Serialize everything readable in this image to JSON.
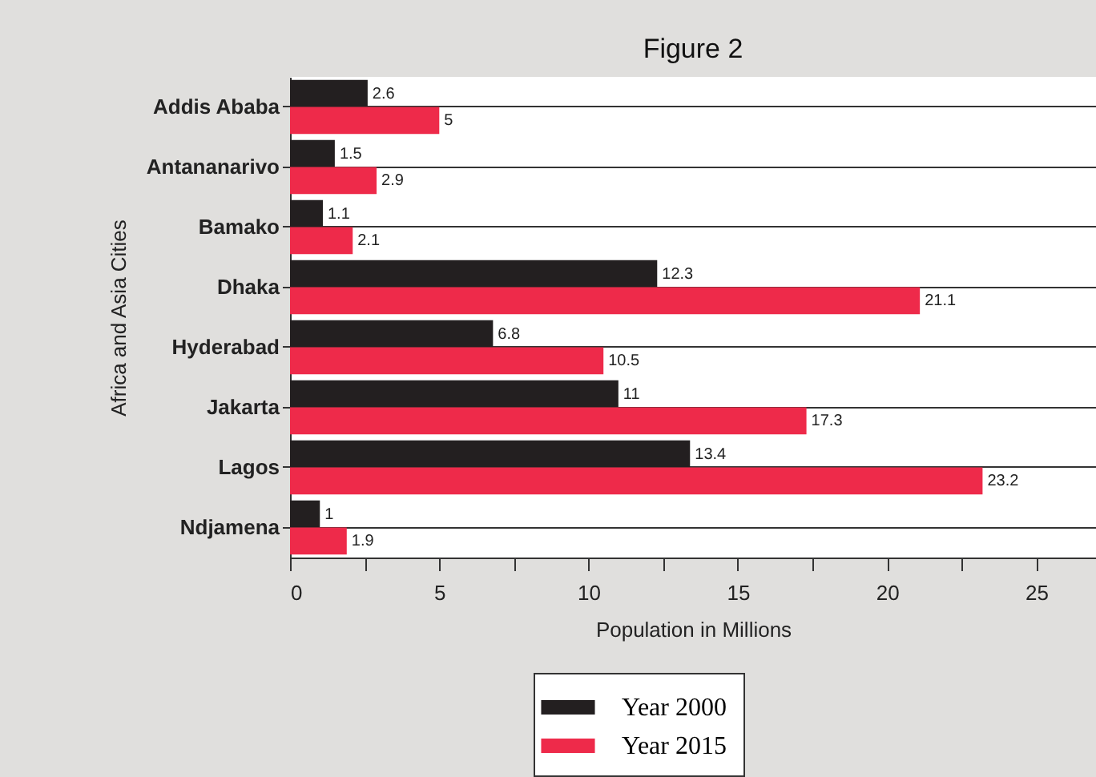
{
  "chart_data": {
    "type": "bar",
    "orientation": "horizontal",
    "title": "Figure 2",
    "xlabel": "Population in Millions",
    "ylabel": "Africa and Asia Cities",
    "categories": [
      "Addis Ababa",
      "Antananarivo",
      "Bamako",
      "Dhaka",
      "Hyderabad",
      "Jakarta",
      "Lagos",
      "Ndjamena"
    ],
    "series": [
      {
        "name": "Year 2000",
        "color": "#231f20",
        "values": [
          2.6,
          1.5,
          1.1,
          12.3,
          6.8,
          11,
          13.4,
          1
        ]
      },
      {
        "name": "Year 2015",
        "color": "#ee2a4a",
        "values": [
          5,
          2.9,
          2.1,
          21.1,
          10.5,
          17.3,
          23.2,
          1.9
        ]
      }
    ],
    "xlim": [
      0,
      27
    ],
    "xticks": [
      0,
      {
        "value": 2.5,
        "label": null
      },
      5,
      {
        "value": 7.5,
        "label": null
      },
      10,
      {
        "value": 12.5,
        "label": null
      },
      15,
      {
        "value": 17.5,
        "label": null
      },
      20,
      {
        "value": 22.5,
        "label": null
      },
      25
    ],
    "grid": "y",
    "legend": "bottom",
    "data_labels": true
  }
}
